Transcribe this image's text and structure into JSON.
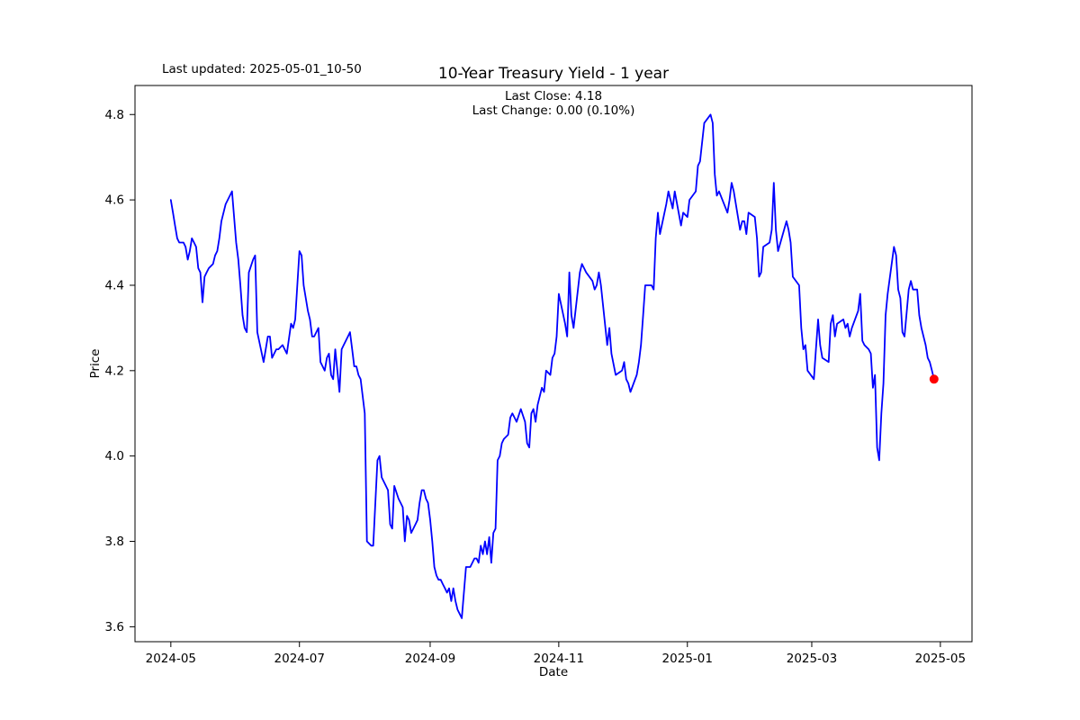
{
  "figure": {
    "last_updated": "Last updated: 2025-05-01_10-50",
    "title": "10-Year Treasury Yield - 1 year",
    "subtitle_line1": "Last Close: 4.18",
    "subtitle_line2": "Last Change: 0.00 (0.10%)",
    "x_axis_label": "Date",
    "y_axis_label": "Price"
  },
  "chart_data": {
    "type": "line",
    "title": "10-Year Treasury Yield - 1 year",
    "xlabel": "Date",
    "ylabel": "Price",
    "last_close": 4.18,
    "last_change": "0.00 (0.10%)",
    "line_color": "#0000ff",
    "marker_color": "#ff0000",
    "background_color": "#ffffff",
    "grid": false,
    "legend": "none",
    "xlim": [
      "2024-04-14",
      "2025-05-16"
    ],
    "ylim": [
      3.565,
      4.868
    ],
    "x_ticks": [
      "2024-05-01",
      "2024-07-01",
      "2024-09-01",
      "2024-11-01",
      "2025-01-01",
      "2025-03-01",
      "2025-05-01"
    ],
    "x_tick_labels": [
      "2024-05",
      "2024-07",
      "2024-09",
      "2024-11",
      "2025-01",
      "2025-03",
      "2025-05"
    ],
    "y_ticks": [
      3.6,
      3.8,
      4.0,
      4.2,
      4.4,
      4.6,
      4.8
    ],
    "y_tick_labels": [
      "3.6",
      "3.8",
      "4.0",
      "4.2",
      "4.4",
      "4.6",
      "4.8"
    ],
    "points": [
      [
        "2024-05-01",
        4.6
      ],
      [
        "2024-05-02",
        4.57
      ],
      [
        "2024-05-03",
        4.54
      ],
      [
        "2024-05-04",
        4.51
      ],
      [
        "2024-05-05",
        4.5
      ],
      [
        "2024-05-07",
        4.5
      ],
      [
        "2024-05-08",
        4.49
      ],
      [
        "2024-05-09",
        4.46
      ],
      [
        "2024-05-10",
        4.48
      ],
      [
        "2024-05-11",
        4.51
      ],
      [
        "2024-05-12",
        4.5
      ],
      [
        "2024-05-13",
        4.49
      ],
      [
        "2024-05-14",
        4.44
      ],
      [
        "2024-05-15",
        4.43
      ],
      [
        "2024-05-16",
        4.36
      ],
      [
        "2024-05-17",
        4.42
      ],
      [
        "2024-05-18",
        4.43
      ],
      [
        "2024-05-19",
        4.44
      ],
      [
        "2024-05-21",
        4.45
      ],
      [
        "2024-05-22",
        4.47
      ],
      [
        "2024-05-23",
        4.48
      ],
      [
        "2024-05-24",
        4.51
      ],
      [
        "2024-05-25",
        4.55
      ],
      [
        "2024-05-27",
        4.59
      ],
      [
        "2024-05-30",
        4.62
      ],
      [
        "2024-05-31",
        4.56
      ],
      [
        "2024-06-01",
        4.5
      ],
      [
        "2024-06-02",
        4.46
      ],
      [
        "2024-06-03",
        4.4
      ],
      [
        "2024-06-04",
        4.33
      ],
      [
        "2024-06-05",
        4.3
      ],
      [
        "2024-06-06",
        4.29
      ],
      [
        "2024-06-07",
        4.43
      ],
      [
        "2024-06-09",
        4.46
      ],
      [
        "2024-06-10",
        4.47
      ],
      [
        "2024-06-11",
        4.29
      ],
      [
        "2024-06-14",
        4.22
      ],
      [
        "2024-06-16",
        4.28
      ],
      [
        "2024-06-17",
        4.28
      ],
      [
        "2024-06-18",
        4.23
      ],
      [
        "2024-06-20",
        4.25
      ],
      [
        "2024-06-21",
        4.25
      ],
      [
        "2024-06-23",
        4.26
      ],
      [
        "2024-06-24",
        4.25
      ],
      [
        "2024-06-25",
        4.24
      ],
      [
        "2024-06-27",
        4.31
      ],
      [
        "2024-06-28",
        4.3
      ],
      [
        "2024-06-29",
        4.32
      ],
      [
        "2024-07-01",
        4.48
      ],
      [
        "2024-07-02",
        4.47
      ],
      [
        "2024-07-03",
        4.4
      ],
      [
        "2024-07-05",
        4.34
      ],
      [
        "2024-07-06",
        4.32
      ],
      [
        "2024-07-07",
        4.28
      ],
      [
        "2024-07-08",
        4.28
      ],
      [
        "2024-07-10",
        4.3
      ],
      [
        "2024-07-11",
        4.22
      ],
      [
        "2024-07-12",
        4.21
      ],
      [
        "2024-07-13",
        4.2
      ],
      [
        "2024-07-14",
        4.23
      ],
      [
        "2024-07-15",
        4.24
      ],
      [
        "2024-07-16",
        4.19
      ],
      [
        "2024-07-17",
        4.18
      ],
      [
        "2024-07-18",
        4.25
      ],
      [
        "2024-07-20",
        4.15
      ],
      [
        "2024-07-21",
        4.25
      ],
      [
        "2024-07-22",
        4.26
      ],
      [
        "2024-07-24",
        4.28
      ],
      [
        "2024-07-25",
        4.29
      ],
      [
        "2024-07-26",
        4.25
      ],
      [
        "2024-07-27",
        4.21
      ],
      [
        "2024-07-28",
        4.21
      ],
      [
        "2024-07-29",
        4.19
      ],
      [
        "2024-07-30",
        4.18
      ],
      [
        "2024-07-31",
        4.14
      ],
      [
        "2024-08-01",
        4.1
      ],
      [
        "2024-08-02",
        3.8
      ],
      [
        "2024-08-04",
        3.79
      ],
      [
        "2024-08-05",
        3.79
      ],
      [
        "2024-08-07",
        3.99
      ],
      [
        "2024-08-08",
        4.0
      ],
      [
        "2024-08-09",
        3.95
      ],
      [
        "2024-08-11",
        3.93
      ],
      [
        "2024-08-12",
        3.92
      ],
      [
        "2024-08-13",
        3.84
      ],
      [
        "2024-08-14",
        3.83
      ],
      [
        "2024-08-15",
        3.93
      ],
      [
        "2024-08-17",
        3.9
      ],
      [
        "2024-08-18",
        3.89
      ],
      [
        "2024-08-19",
        3.88
      ],
      [
        "2024-08-20",
        3.8
      ],
      [
        "2024-08-21",
        3.86
      ],
      [
        "2024-08-22",
        3.85
      ],
      [
        "2024-08-23",
        3.82
      ],
      [
        "2024-08-25",
        3.84
      ],
      [
        "2024-08-26",
        3.85
      ],
      [
        "2024-08-27",
        3.89
      ],
      [
        "2024-08-28",
        3.92
      ],
      [
        "2024-08-29",
        3.92
      ],
      [
        "2024-08-30",
        3.9
      ],
      [
        "2024-08-31",
        3.89
      ],
      [
        "2024-09-01",
        3.85
      ],
      [
        "2024-09-02",
        3.8
      ],
      [
        "2024-09-03",
        3.74
      ],
      [
        "2024-09-04",
        3.72
      ],
      [
        "2024-09-05",
        3.71
      ],
      [
        "2024-09-06",
        3.71
      ],
      [
        "2024-09-07",
        3.7
      ],
      [
        "2024-09-08",
        3.69
      ],
      [
        "2024-09-09",
        3.68
      ],
      [
        "2024-09-10",
        3.69
      ],
      [
        "2024-09-11",
        3.66
      ],
      [
        "2024-09-12",
        3.69
      ],
      [
        "2024-09-13",
        3.66
      ],
      [
        "2024-09-14",
        3.64
      ],
      [
        "2024-09-15",
        3.63
      ],
      [
        "2024-09-16",
        3.62
      ],
      [
        "2024-09-18",
        3.74
      ],
      [
        "2024-09-20",
        3.74
      ],
      [
        "2024-09-22",
        3.76
      ],
      [
        "2024-09-23",
        3.76
      ],
      [
        "2024-09-24",
        3.75
      ],
      [
        "2024-09-25",
        3.79
      ],
      [
        "2024-09-26",
        3.77
      ],
      [
        "2024-09-27",
        3.8
      ],
      [
        "2024-09-28",
        3.77
      ],
      [
        "2024-09-29",
        3.81
      ],
      [
        "2024-09-30",
        3.75
      ],
      [
        "2024-10-01",
        3.82
      ],
      [
        "2024-10-02",
        3.83
      ],
      [
        "2024-10-03",
        3.99
      ],
      [
        "2024-10-04",
        4.0
      ],
      [
        "2024-10-05",
        4.03
      ],
      [
        "2024-10-06",
        4.04
      ],
      [
        "2024-10-08",
        4.05
      ],
      [
        "2024-10-09",
        4.09
      ],
      [
        "2024-10-10",
        4.1
      ],
      [
        "2024-10-11",
        4.09
      ],
      [
        "2024-10-12",
        4.08
      ],
      [
        "2024-10-14",
        4.11
      ],
      [
        "2024-10-16",
        4.08
      ],
      [
        "2024-10-17",
        4.03
      ],
      [
        "2024-10-18",
        4.02
      ],
      [
        "2024-10-19",
        4.1
      ],
      [
        "2024-10-20",
        4.11
      ],
      [
        "2024-10-21",
        4.08
      ],
      [
        "2024-10-22",
        4.12
      ],
      [
        "2024-10-24",
        4.16
      ],
      [
        "2024-10-25",
        4.15
      ],
      [
        "2024-10-26",
        4.2
      ],
      [
        "2024-10-28",
        4.19
      ],
      [
        "2024-10-29",
        4.23
      ],
      [
        "2024-10-30",
        4.24
      ],
      [
        "2024-10-31",
        4.28
      ],
      [
        "2024-11-01",
        4.38
      ],
      [
        "2024-11-04",
        4.31
      ],
      [
        "2024-11-05",
        4.28
      ],
      [
        "2024-11-06",
        4.43
      ],
      [
        "2024-11-07",
        4.33
      ],
      [
        "2024-11-08",
        4.3
      ],
      [
        "2024-11-11",
        4.43
      ],
      [
        "2024-11-12",
        4.45
      ],
      [
        "2024-11-13",
        4.44
      ],
      [
        "2024-11-14",
        4.43
      ],
      [
        "2024-11-17",
        4.41
      ],
      [
        "2024-11-18",
        4.39
      ],
      [
        "2024-11-19",
        4.4
      ],
      [
        "2024-11-20",
        4.43
      ],
      [
        "2024-11-21",
        4.4
      ],
      [
        "2024-11-24",
        4.26
      ],
      [
        "2024-11-25",
        4.3
      ],
      [
        "2024-11-26",
        4.24
      ],
      [
        "2024-11-28",
        4.19
      ],
      [
        "2024-12-01",
        4.2
      ],
      [
        "2024-12-02",
        4.22
      ],
      [
        "2024-12-03",
        4.18
      ],
      [
        "2024-12-04",
        4.17
      ],
      [
        "2024-12-05",
        4.15
      ],
      [
        "2024-12-08",
        4.19
      ],
      [
        "2024-12-09",
        4.22
      ],
      [
        "2024-12-10",
        4.26
      ],
      [
        "2024-12-11",
        4.33
      ],
      [
        "2024-12-12",
        4.4
      ],
      [
        "2024-12-15",
        4.4
      ],
      [
        "2024-12-16",
        4.39
      ],
      [
        "2024-12-17",
        4.51
      ],
      [
        "2024-12-18",
        4.57
      ],
      [
        "2024-12-19",
        4.52
      ],
      [
        "2024-12-22",
        4.59
      ],
      [
        "2024-12-23",
        4.62
      ],
      [
        "2024-12-25",
        4.58
      ],
      [
        "2024-12-26",
        4.62
      ],
      [
        "2024-12-29",
        4.54
      ],
      [
        "2024-12-30",
        4.57
      ],
      [
        "2025-01-01",
        4.56
      ],
      [
        "2025-01-02",
        4.6
      ],
      [
        "2025-01-05",
        4.62
      ],
      [
        "2025-01-06",
        4.68
      ],
      [
        "2025-01-07",
        4.69
      ],
      [
        "2025-01-09",
        4.78
      ],
      [
        "2025-01-12",
        4.8
      ],
      [
        "2025-01-13",
        4.78
      ],
      [
        "2025-01-14",
        4.66
      ],
      [
        "2025-01-15",
        4.61
      ],
      [
        "2025-01-16",
        4.62
      ],
      [
        "2025-01-20",
        4.57
      ],
      [
        "2025-01-21",
        4.6
      ],
      [
        "2025-01-22",
        4.64
      ],
      [
        "2025-01-23",
        4.62
      ],
      [
        "2025-01-26",
        4.53
      ],
      [
        "2025-01-27",
        4.55
      ],
      [
        "2025-01-28",
        4.55
      ],
      [
        "2025-01-29",
        4.52
      ],
      [
        "2025-01-30",
        4.57
      ],
      [
        "2025-02-02",
        4.56
      ],
      [
        "2025-02-03",
        4.51
      ],
      [
        "2025-02-04",
        4.42
      ],
      [
        "2025-02-05",
        4.43
      ],
      [
        "2025-02-06",
        4.49
      ],
      [
        "2025-02-09",
        4.5
      ],
      [
        "2025-02-10",
        4.53
      ],
      [
        "2025-02-11",
        4.64
      ],
      [
        "2025-02-12",
        4.53
      ],
      [
        "2025-02-13",
        4.48
      ],
      [
        "2025-02-17",
        4.55
      ],
      [
        "2025-02-18",
        4.53
      ],
      [
        "2025-02-19",
        4.5
      ],
      [
        "2025-02-20",
        4.42
      ],
      [
        "2025-02-23",
        4.4
      ],
      [
        "2025-02-24",
        4.3
      ],
      [
        "2025-02-25",
        4.25
      ],
      [
        "2025-02-26",
        4.26
      ],
      [
        "2025-02-27",
        4.2
      ],
      [
        "2025-03-02",
        4.18
      ],
      [
        "2025-03-03",
        4.25
      ],
      [
        "2025-03-04",
        4.32
      ],
      [
        "2025-03-05",
        4.26
      ],
      [
        "2025-03-06",
        4.23
      ],
      [
        "2025-03-09",
        4.22
      ],
      [
        "2025-03-10",
        4.31
      ],
      [
        "2025-03-11",
        4.33
      ],
      [
        "2025-03-12",
        4.28
      ],
      [
        "2025-03-13",
        4.31
      ],
      [
        "2025-03-16",
        4.32
      ],
      [
        "2025-03-17",
        4.3
      ],
      [
        "2025-03-18",
        4.31
      ],
      [
        "2025-03-19",
        4.28
      ],
      [
        "2025-03-20",
        4.3
      ],
      [
        "2025-03-23",
        4.34
      ],
      [
        "2025-03-24",
        4.38
      ],
      [
        "2025-03-25",
        4.27
      ],
      [
        "2025-03-26",
        4.26
      ],
      [
        "2025-03-28",
        4.25
      ],
      [
        "2025-03-29",
        4.24
      ],
      [
        "2025-03-30",
        4.16
      ],
      [
        "2025-03-31",
        4.19
      ],
      [
        "2025-04-01",
        4.02
      ],
      [
        "2025-04-02",
        3.99
      ],
      [
        "2025-04-03",
        4.1
      ],
      [
        "2025-04-04",
        4.17
      ],
      [
        "2025-04-05",
        4.33
      ],
      [
        "2025-04-06",
        4.38
      ],
      [
        "2025-04-09",
        4.49
      ],
      [
        "2025-04-10",
        4.47
      ],
      [
        "2025-04-11",
        4.39
      ],
      [
        "2025-04-12",
        4.37
      ],
      [
        "2025-04-13",
        4.29
      ],
      [
        "2025-04-14",
        4.28
      ],
      [
        "2025-04-16",
        4.39
      ],
      [
        "2025-04-17",
        4.41
      ],
      [
        "2025-04-18",
        4.39
      ],
      [
        "2025-04-20",
        4.39
      ],
      [
        "2025-04-21",
        4.33
      ],
      [
        "2025-04-22",
        4.3
      ],
      [
        "2025-04-24",
        4.26
      ],
      [
        "2025-04-25",
        4.23
      ],
      [
        "2025-04-26",
        4.22
      ],
      [
        "2025-04-27",
        4.2
      ],
      [
        "2025-04-28",
        4.18
      ]
    ]
  }
}
